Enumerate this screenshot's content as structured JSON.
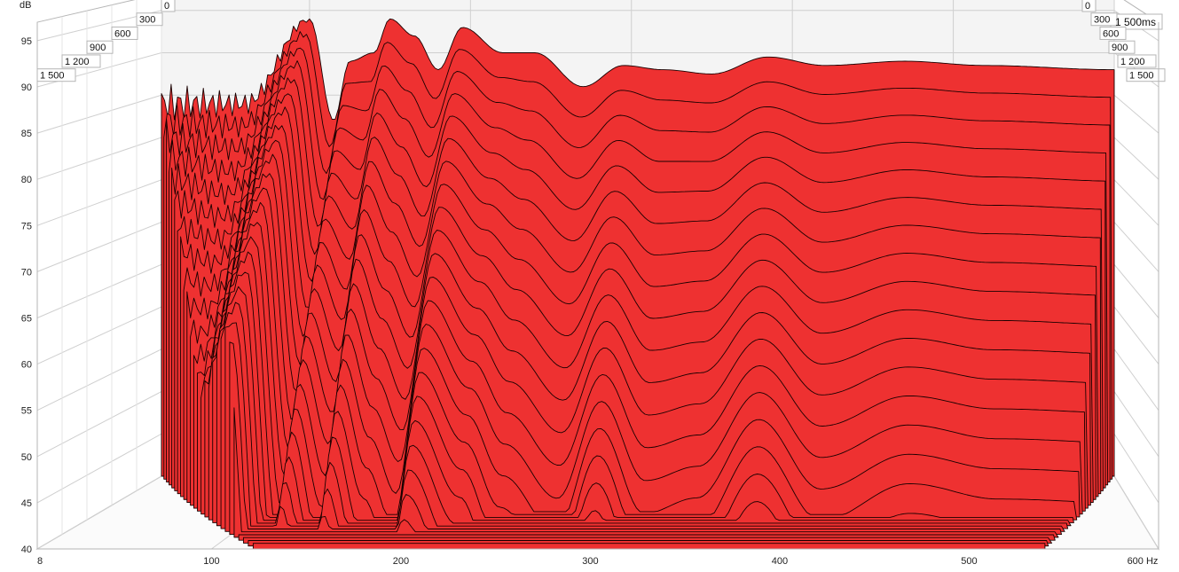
{
  "chart_data": {
    "type": "waterfall-3d",
    "title": "",
    "y_unit_label": "dB",
    "x_unit_label": "Hz",
    "z_unit_label": "ms",
    "y_ticks": [
      40,
      45,
      50,
      55,
      60,
      65,
      70,
      75,
      80,
      85,
      90,
      95
    ],
    "x_ticks": [
      8,
      100,
      200,
      300,
      400,
      500,
      600
    ],
    "x_tick_labels": [
      "8",
      "100",
      "200",
      "300",
      "400",
      "500",
      "600 Hz"
    ],
    "z_ticks": [
      0,
      300,
      600,
      900,
      1200,
      1500
    ],
    "z_tick_labels": [
      "0",
      "300",
      "600",
      "900",
      "1 200",
      "1 500"
    ],
    "z_end_label": "1 500ms",
    "ylim": [
      40,
      97
    ],
    "xlim": [
      8,
      600
    ],
    "zlim": [
      0,
      1500
    ],
    "slice_count": 26,
    "slice_times_ms": [
      0,
      60,
      120,
      180,
      240,
      300,
      360,
      420,
      480,
      540,
      600,
      660,
      720,
      780,
      840,
      900,
      960,
      1020,
      1080,
      1140,
      1200,
      1260,
      1320,
      1380,
      1440,
      1500
    ],
    "surface_color": "#ee3131",
    "line_color": "#1a0000",
    "grid_on": true,
    "front_slice_peaks": [
      {
        "freq_hz": 50,
        "db": 84
      },
      {
        "freq_hz": 100,
        "db": 94
      },
      {
        "freq_hz": 130,
        "db": 89
      },
      {
        "freq_hz": 150,
        "db": 94
      },
      {
        "freq_hz": 165,
        "db": 92
      },
      {
        "freq_hz": 195,
        "db": 93
      },
      {
        "freq_hz": 240,
        "db": 90
      },
      {
        "freq_hz": 290,
        "db": 88
      },
      {
        "freq_hz": 385,
        "db": 89.5
      },
      {
        "freq_hz": 470,
        "db": 89
      },
      {
        "freq_hz": 580,
        "db": 88
      }
    ],
    "decay_profile": [
      {
        "freq_hz": 8,
        "db_at_0ms": 84,
        "decay_db_per_s": 22
      },
      {
        "freq_hz": 60,
        "db_at_0ms": 84,
        "decay_db_per_s": 30
      },
      {
        "freq_hz": 100,
        "db_at_0ms": 94,
        "decay_db_per_s": 20
      },
      {
        "freq_hz": 115,
        "db_at_0ms": 82,
        "decay_db_per_s": 36
      },
      {
        "freq_hz": 125,
        "db_at_0ms": 89,
        "decay_db_per_s": 30
      },
      {
        "freq_hz": 140,
        "db_at_0ms": 90,
        "decay_db_per_s": 40
      },
      {
        "freq_hz": 150,
        "db_at_0ms": 94,
        "decay_db_per_s": 32
      },
      {
        "freq_hz": 165,
        "db_at_0ms": 92,
        "decay_db_per_s": 38
      },
      {
        "freq_hz": 180,
        "db_at_0ms": 88,
        "decay_db_per_s": 40
      },
      {
        "freq_hz": 195,
        "db_at_0ms": 93,
        "decay_db_per_s": 30
      },
      {
        "freq_hz": 220,
        "db_at_0ms": 90,
        "decay_db_per_s": 34
      },
      {
        "freq_hz": 240,
        "db_at_0ms": 90,
        "decay_db_per_s": 40
      },
      {
        "freq_hz": 270,
        "db_at_0ms": 86,
        "decay_db_per_s": 42
      },
      {
        "freq_hz": 295,
        "db_at_0ms": 88.5,
        "decay_db_per_s": 34
      },
      {
        "freq_hz": 320,
        "db_at_0ms": 88,
        "decay_db_per_s": 42
      },
      {
        "freq_hz": 350,
        "db_at_0ms": 87.5,
        "decay_db_per_s": 40
      },
      {
        "freq_hz": 385,
        "db_at_0ms": 89.5,
        "decay_db_per_s": 34
      },
      {
        "freq_hz": 420,
        "db_at_0ms": 88.5,
        "decay_db_per_s": 40
      },
      {
        "freq_hz": 470,
        "db_at_0ms": 89,
        "decay_db_per_s": 37
      },
      {
        "freq_hz": 520,
        "db_at_0ms": 88.5,
        "decay_db_per_s": 38
      },
      {
        "freq_hz": 600,
        "db_at_0ms": 88,
        "decay_db_per_s": 38
      }
    ]
  }
}
